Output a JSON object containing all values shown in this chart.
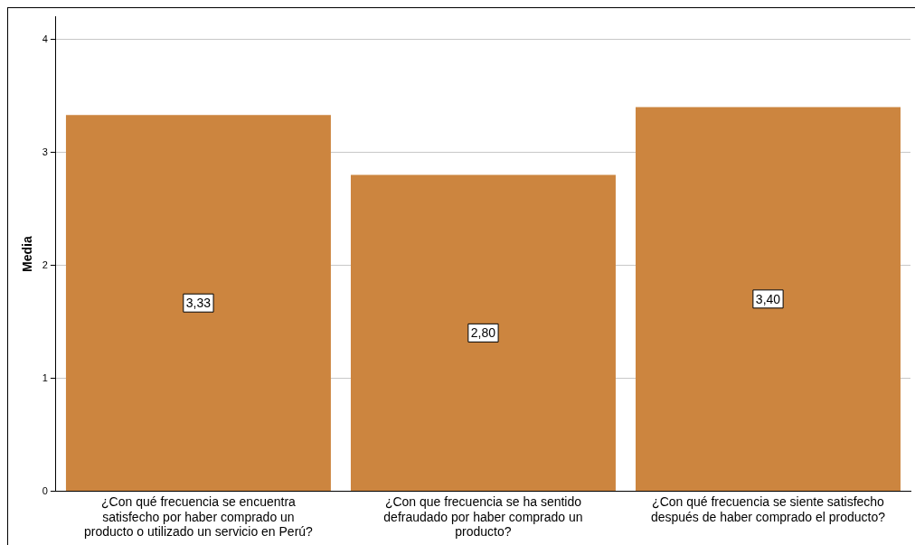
{
  "chart_data": {
    "type": "bar",
    "ylabel": "Media",
    "categories": [
      "¿Con qué frecuencia se encuentra satisfecho por haber comprado un producto o utilizado un servicio en Perú?",
      "¿Con que frecuencia se ha sentido defraudado por haber comprado un producto?",
      "¿Con qué frecuencia se siente satisfecho después de haber comprado el producto?"
    ],
    "values": [
      3.33,
      2.8,
      3.4
    ],
    "value_labels": [
      "3,33",
      "2,80",
      "3,40"
    ],
    "color": "#cc853f",
    "ylim": [
      0,
      4.2
    ],
    "yticks": [
      0,
      1,
      2,
      3,
      4
    ],
    "grid": "y",
    "legend": false
  }
}
